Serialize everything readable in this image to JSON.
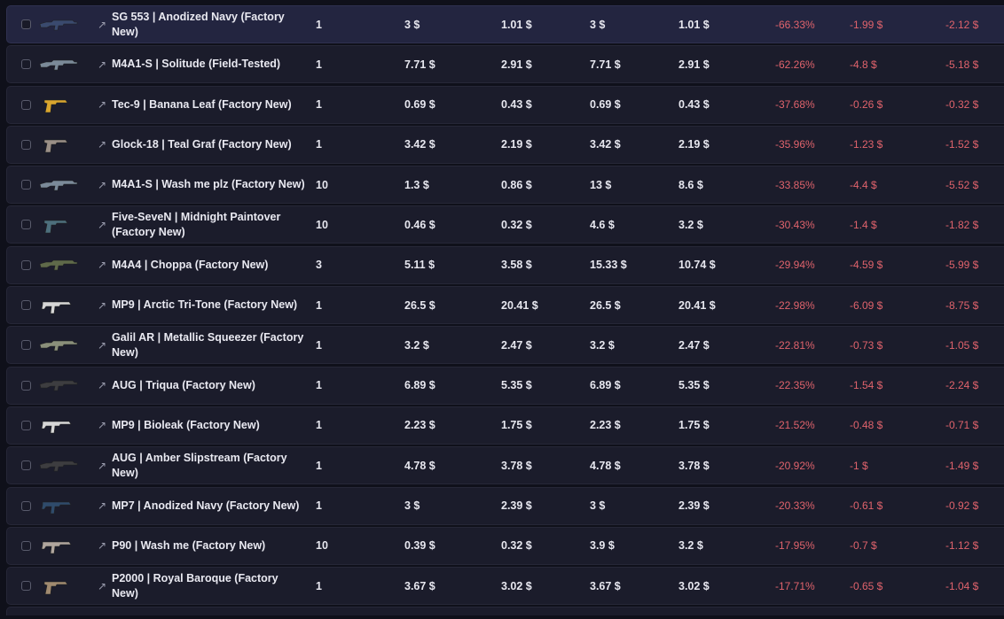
{
  "rows": [
    {
      "name": "SG 553 | Anodized Navy (Factory New)",
      "qty": "1",
      "price": "3 $",
      "sale_price": "1.01 $",
      "total": "3 $",
      "sale_total": "1.01 $",
      "change_pct": "-66.33%",
      "diff": "-1.99 $",
      "diff_total": "-2.12 $",
      "icon": "sg553-rifle-icon",
      "selected": true
    },
    {
      "name": "M4A1-S | Solitude (Field-Tested)",
      "qty": "1",
      "price": "7.71 $",
      "sale_price": "2.91 $",
      "total": "7.71 $",
      "sale_total": "2.91 $",
      "change_pct": "-62.26%",
      "diff": "-4.8 $",
      "diff_total": "-5.18 $",
      "icon": "m4a1s-rifle-icon"
    },
    {
      "name": "Tec-9 | Banana Leaf (Factory New)",
      "qty": "1",
      "price": "0.69 $",
      "sale_price": "0.43 $",
      "total": "0.69 $",
      "sale_total": "0.43 $",
      "change_pct": "-37.68%",
      "diff": "-0.26 $",
      "diff_total": "-0.32 $",
      "icon": "tec9-pistol-icon"
    },
    {
      "name": "Glock-18 | Teal Graf (Factory New)",
      "qty": "1",
      "price": "3.42 $",
      "sale_price": "2.19 $",
      "total": "3.42 $",
      "sale_total": "2.19 $",
      "change_pct": "-35.96%",
      "diff": "-1.23 $",
      "diff_total": "-1.52 $",
      "icon": "glock-pistol-icon"
    },
    {
      "name": "M4A1-S | Wash me plz (Factory New)",
      "qty": "10",
      "price": "1.3 $",
      "sale_price": "0.86 $",
      "total": "13 $",
      "sale_total": "8.6 $",
      "change_pct": "-33.85%",
      "diff": "-4.4 $",
      "diff_total": "-5.52 $",
      "icon": "m4a1s-rifle-icon"
    },
    {
      "name": "Five-SeveN | Midnight Paintover (Factory New)",
      "qty": "10",
      "price": "0.46 $",
      "sale_price": "0.32 $",
      "total": "4.6 $",
      "sale_total": "3.2 $",
      "change_pct": "-30.43%",
      "diff": "-1.4 $",
      "diff_total": "-1.82 $",
      "icon": "fiveseven-pistol-icon"
    },
    {
      "name": "M4A4 | Choppa (Factory New)",
      "qty": "3",
      "price": "5.11 $",
      "sale_price": "3.58 $",
      "total": "15.33 $",
      "sale_total": "10.74 $",
      "change_pct": "-29.94%",
      "diff": "-4.59 $",
      "diff_total": "-5.99 $",
      "icon": "m4a4-rifle-icon"
    },
    {
      "name": "MP9 | Arctic Tri-Tone (Factory New)",
      "qty": "1",
      "price": "26.5 $",
      "sale_price": "20.41 $",
      "total": "26.5 $",
      "sale_total": "20.41 $",
      "change_pct": "-22.98%",
      "diff": "-6.09 $",
      "diff_total": "-8.75 $",
      "icon": "mp9-smg-icon"
    },
    {
      "name": "Galil AR | Metallic Squeezer (Factory New)",
      "qty": "1",
      "price": "3.2 $",
      "sale_price": "2.47 $",
      "total": "3.2 $",
      "sale_total": "2.47 $",
      "change_pct": "-22.81%",
      "diff": "-0.73 $",
      "diff_total": "-1.05 $",
      "icon": "galil-rifle-icon"
    },
    {
      "name": "AUG | Triqua (Factory New)",
      "qty": "1",
      "price": "6.89 $",
      "sale_price": "5.35 $",
      "total": "6.89 $",
      "sale_total": "5.35 $",
      "change_pct": "-22.35%",
      "diff": "-1.54 $",
      "diff_total": "-2.24 $",
      "icon": "aug-rifle-icon"
    },
    {
      "name": "MP9 | Bioleak (Factory New)",
      "qty": "1",
      "price": "2.23 $",
      "sale_price": "1.75 $",
      "total": "2.23 $",
      "sale_total": "1.75 $",
      "change_pct": "-21.52%",
      "diff": "-0.48 $",
      "diff_total": "-0.71 $",
      "icon": "mp9-smg-icon"
    },
    {
      "name": "AUG | Amber Slipstream (Factory New)",
      "qty": "1",
      "price": "4.78 $",
      "sale_price": "3.78 $",
      "total": "4.78 $",
      "sale_total": "3.78 $",
      "change_pct": "-20.92%",
      "diff": "-1 $",
      "diff_total": "-1.49 $",
      "icon": "aug-rifle-icon"
    },
    {
      "name": "MP7 | Anodized Navy (Factory New)",
      "qty": "1",
      "price": "3 $",
      "sale_price": "2.39 $",
      "total": "3 $",
      "sale_total": "2.39 $",
      "change_pct": "-20.33%",
      "diff": "-0.61 $",
      "diff_total": "-0.92 $",
      "icon": "mp7-smg-icon"
    },
    {
      "name": "P90 | Wash me (Factory New)",
      "qty": "10",
      "price": "0.39 $",
      "sale_price": "0.32 $",
      "total": "3.9 $",
      "sale_total": "3.2 $",
      "change_pct": "-17.95%",
      "diff": "-0.7 $",
      "diff_total": "-1.12 $",
      "icon": "p90-smg-icon"
    },
    {
      "name": "P2000 | Royal Baroque (Factory New)",
      "qty": "1",
      "price": "3.67 $",
      "sale_price": "3.02 $",
      "total": "3.67 $",
      "sale_total": "3.02 $",
      "change_pct": "-17.71%",
      "diff": "-0.65 $",
      "diff_total": "-1.04 $",
      "icon": "p2000-pistol-icon"
    }
  ],
  "icon_colors": {
    "sg553-rifle-icon": "#3a4a6e",
    "m4a1s-rifle-icon": "#7b8a99",
    "tec9-pistol-icon": "#d9a52e",
    "glock-pistol-icon": "#9a8f87",
    "fiveseven-pistol-icon": "#4d6f7d",
    "m4a4-rifle-icon": "#5f6a4a",
    "mp9-smg-icon": "#d6d6d6",
    "galil-rifle-icon": "#8a8f7a",
    "aug-rifle-icon": "#3d3d40",
    "mp7-smg-icon": "#2f4b6b",
    "p90-smg-icon": "#b0a69e",
    "p2000-pistol-icon": "#a08a70"
  },
  "colors": {
    "background": "#0f101a",
    "row": "#1b1c2b",
    "row_selected": "#232540",
    "negative": "#e0636c",
    "text": "#e7e7ef"
  }
}
